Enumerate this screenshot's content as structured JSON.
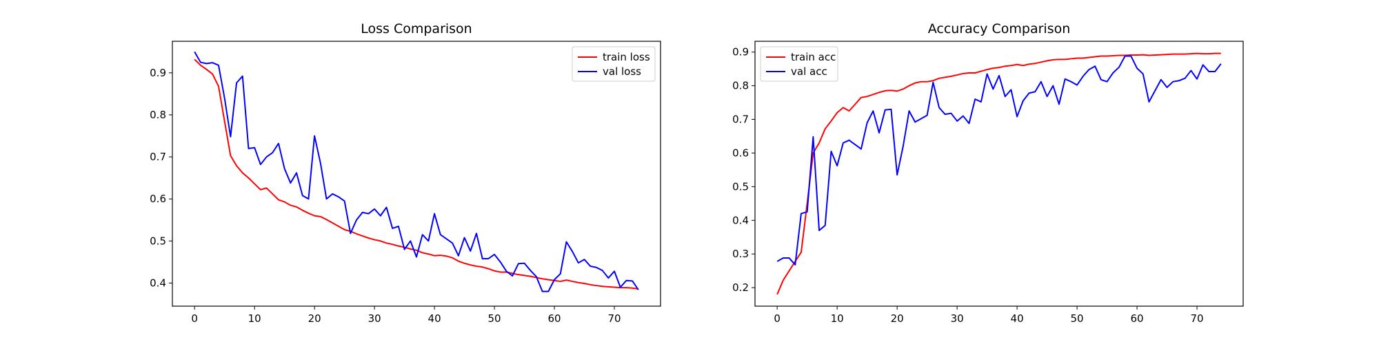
{
  "chart_data": [
    {
      "type": "line",
      "title": "Loss Comparison",
      "xlabel": "",
      "ylabel": "",
      "xlim": [
        -3.7,
        77.7
      ],
      "ylim": [
        0.345,
        0.975
      ],
      "xticks": [
        0,
        10,
        20,
        30,
        40,
        50,
        60,
        70
      ],
      "yticks": [
        0.4,
        0.5,
        0.6,
        0.7,
        0.8,
        0.9
      ],
      "legend": "top-right",
      "grid": false,
      "series": [
        {
          "name": "train loss",
          "color": "#ff0000",
          "x": [
            0,
            1,
            2,
            3,
            4,
            5,
            6,
            7,
            8,
            9,
            10,
            11,
            12,
            13,
            14,
            15,
            16,
            17,
            18,
            19,
            20,
            21,
            22,
            23,
            24,
            25,
            26,
            27,
            28,
            29,
            30,
            31,
            32,
            33,
            34,
            35,
            36,
            37,
            38,
            39,
            40,
            41,
            42,
            43,
            44,
            45,
            46,
            47,
            48,
            49,
            50,
            51,
            52,
            53,
            54,
            55,
            56,
            57,
            58,
            59,
            60,
            61,
            62,
            63,
            64,
            65,
            66,
            67,
            68,
            69,
            70,
            71,
            72,
            73,
            74
          ],
          "values": [
            0.932,
            0.918,
            0.908,
            0.897,
            0.868,
            0.785,
            0.703,
            0.679,
            0.662,
            0.65,
            0.636,
            0.622,
            0.626,
            0.612,
            0.598,
            0.593,
            0.585,
            0.581,
            0.573,
            0.566,
            0.56,
            0.558,
            0.551,
            0.543,
            0.535,
            0.527,
            0.523,
            0.517,
            0.512,
            0.507,
            0.503,
            0.5,
            0.495,
            0.492,
            0.488,
            0.485,
            0.481,
            0.478,
            0.472,
            0.469,
            0.465,
            0.466,
            0.464,
            0.46,
            0.452,
            0.447,
            0.443,
            0.44,
            0.438,
            0.434,
            0.429,
            0.426,
            0.426,
            0.423,
            0.42,
            0.418,
            0.416,
            0.413,
            0.41,
            0.408,
            0.406,
            0.404,
            0.407,
            0.404,
            0.401,
            0.399,
            0.396,
            0.394,
            0.392,
            0.391,
            0.39,
            0.389,
            0.389,
            0.388,
            0.386
          ]
        },
        {
          "name": "val loss",
          "color": "#0000ff",
          "x": [
            0,
            1,
            2,
            3,
            4,
            5,
            6,
            7,
            8,
            9,
            10,
            11,
            12,
            13,
            14,
            15,
            16,
            17,
            18,
            19,
            20,
            21,
            22,
            23,
            24,
            25,
            26,
            27,
            28,
            29,
            30,
            31,
            32,
            33,
            34,
            35,
            36,
            37,
            38,
            39,
            40,
            41,
            42,
            43,
            44,
            45,
            46,
            47,
            48,
            49,
            50,
            51,
            52,
            53,
            54,
            55,
            56,
            57,
            58,
            59,
            60,
            61,
            62,
            63,
            64,
            65,
            66,
            67,
            68,
            69,
            70,
            71,
            72,
            73,
            74
          ],
          "values": [
            0.95,
            0.925,
            0.922,
            0.924,
            0.918,
            0.84,
            0.748,
            0.876,
            0.892,
            0.72,
            0.722,
            0.682,
            0.7,
            0.71,
            0.732,
            0.672,
            0.638,
            0.662,
            0.608,
            0.6,
            0.75,
            0.685,
            0.6,
            0.612,
            0.605,
            0.595,
            0.518,
            0.55,
            0.568,
            0.565,
            0.576,
            0.56,
            0.58,
            0.53,
            0.535,
            0.48,
            0.5,
            0.462,
            0.515,
            0.5,
            0.565,
            0.515,
            0.505,
            0.495,
            0.465,
            0.508,
            0.476,
            0.518,
            0.458,
            0.458,
            0.468,
            0.45,
            0.428,
            0.417,
            0.446,
            0.447,
            0.43,
            0.415,
            0.38,
            0.38,
            0.408,
            0.422,
            0.498,
            0.475,
            0.448,
            0.456,
            0.44,
            0.437,
            0.43,
            0.412,
            0.428,
            0.39,
            0.406,
            0.405,
            0.384
          ]
        }
      ]
    },
    {
      "type": "line",
      "title": "Accuracy Comparison",
      "xlabel": "",
      "ylabel": "",
      "xlim": [
        -3.7,
        77.7
      ],
      "ylim": [
        0.145,
        0.932
      ],
      "xticks": [
        0,
        10,
        20,
        30,
        40,
        50,
        60,
        70
      ],
      "yticks": [
        0.2,
        0.3,
        0.4,
        0.5,
        0.6,
        0.7,
        0.8,
        0.9
      ],
      "legend": "top-left",
      "grid": false,
      "series": [
        {
          "name": "train acc",
          "color": "#ff0000",
          "x": [
            0,
            1,
            2,
            3,
            4,
            5,
            6,
            7,
            8,
            9,
            10,
            11,
            12,
            13,
            14,
            15,
            16,
            17,
            18,
            19,
            20,
            21,
            22,
            23,
            24,
            25,
            26,
            27,
            28,
            29,
            30,
            31,
            32,
            33,
            34,
            35,
            36,
            37,
            38,
            39,
            40,
            41,
            42,
            43,
            44,
            45,
            46,
            47,
            48,
            49,
            50,
            51,
            52,
            53,
            54,
            55,
            56,
            57,
            58,
            59,
            60,
            61,
            62,
            63,
            64,
            65,
            66,
            67,
            68,
            69,
            70,
            71,
            72,
            73,
            74
          ],
          "values": [
            0.18,
            0.222,
            0.25,
            0.278,
            0.305,
            0.45,
            0.6,
            0.63,
            0.672,
            0.695,
            0.72,
            0.735,
            0.725,
            0.745,
            0.765,
            0.768,
            0.774,
            0.78,
            0.785,
            0.786,
            0.784,
            0.79,
            0.8,
            0.808,
            0.812,
            0.812,
            0.815,
            0.822,
            0.825,
            0.828,
            0.832,
            0.836,
            0.838,
            0.838,
            0.843,
            0.848,
            0.852,
            0.854,
            0.858,
            0.86,
            0.863,
            0.86,
            0.864,
            0.866,
            0.87,
            0.874,
            0.877,
            0.878,
            0.878,
            0.88,
            0.882,
            0.882,
            0.884,
            0.886,
            0.888,
            0.888,
            0.889,
            0.89,
            0.89,
            0.891,
            0.891,
            0.892,
            0.89,
            0.891,
            0.892,
            0.893,
            0.894,
            0.894,
            0.894,
            0.895,
            0.896,
            0.895,
            0.895,
            0.896,
            0.896
          ]
        },
        {
          "name": "val acc",
          "color": "#0000ff",
          "x": [
            0,
            1,
            2,
            3,
            4,
            5,
            6,
            7,
            8,
            9,
            10,
            11,
            12,
            13,
            14,
            15,
            16,
            17,
            18,
            19,
            20,
            21,
            22,
            23,
            24,
            25,
            26,
            27,
            28,
            29,
            30,
            31,
            32,
            33,
            34,
            35,
            36,
            37,
            38,
            39,
            40,
            41,
            42,
            43,
            44,
            45,
            46,
            47,
            48,
            49,
            50,
            51,
            52,
            53,
            54,
            55,
            56,
            57,
            58,
            59,
            60,
            61,
            62,
            63,
            64,
            65,
            66,
            67,
            68,
            69,
            70,
            71,
            72,
            73,
            74
          ],
          "values": [
            0.278,
            0.288,
            0.288,
            0.268,
            0.42,
            0.425,
            0.648,
            0.37,
            0.385,
            0.605,
            0.562,
            0.63,
            0.638,
            0.625,
            0.612,
            0.69,
            0.725,
            0.66,
            0.728,
            0.73,
            0.535,
            0.62,
            0.725,
            0.692,
            0.702,
            0.712,
            0.81,
            0.735,
            0.715,
            0.718,
            0.695,
            0.71,
            0.688,
            0.76,
            0.752,
            0.835,
            0.79,
            0.83,
            0.768,
            0.788,
            0.708,
            0.755,
            0.778,
            0.782,
            0.812,
            0.768,
            0.8,
            0.745,
            0.82,
            0.812,
            0.802,
            0.828,
            0.848,
            0.858,
            0.818,
            0.812,
            0.838,
            0.855,
            0.888,
            0.888,
            0.852,
            0.835,
            0.752,
            0.785,
            0.818,
            0.795,
            0.812,
            0.815,
            0.822,
            0.845,
            0.82,
            0.862,
            0.842,
            0.842,
            0.865
          ]
        }
      ]
    }
  ]
}
